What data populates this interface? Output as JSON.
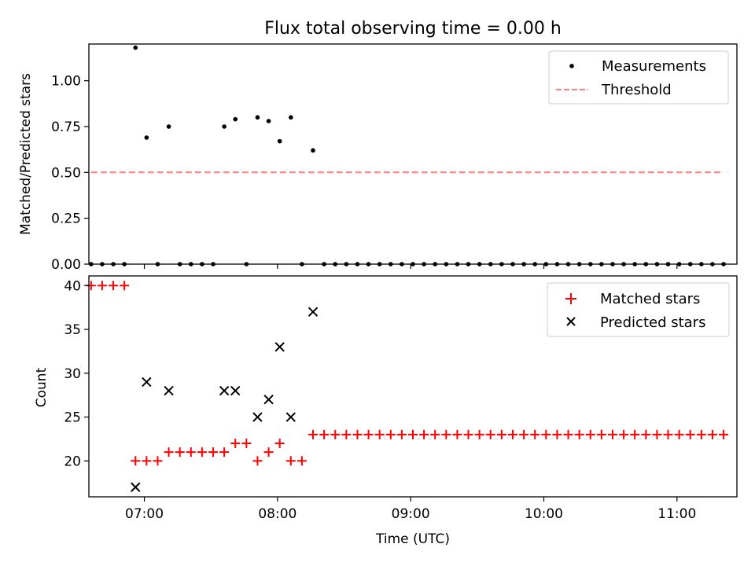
{
  "chart_data": {
    "title": "Flux total observing time = 0.00 h",
    "xlabel": "Time (UTC)",
    "x_tick_labels": [
      "07:00",
      "08:00",
      "09:00",
      "10:00",
      "11:00"
    ],
    "x_range": [
      "06:35",
      "11:27"
    ],
    "top": {
      "type": "scatter",
      "ylabel": "Matched/Predicted stars",
      "ylim": [
        0,
        1.2
      ],
      "y_tick_labels": [
        "0.00",
        "0.25",
        "0.50",
        "0.75",
        "1.00"
      ],
      "legend_position": "top-right",
      "series": [
        {
          "name": "Measurements",
          "marker": "dot",
          "color": "#000000",
          "x": [
            "06:36",
            "06:41",
            "06:46",
            "06:51",
            "06:56",
            "07:01",
            "07:06",
            "07:11",
            "07:16",
            "07:21",
            "07:26",
            "07:31",
            "07:36",
            "07:41",
            "07:46",
            "07:51",
            "07:56",
            "08:01",
            "08:06",
            "08:11",
            "08:16",
            "08:21",
            "08:26",
            "08:31",
            "08:36",
            "08:41",
            "08:46",
            "08:51",
            "08:56",
            "09:01",
            "09:06",
            "09:11",
            "09:16",
            "09:21",
            "09:26",
            "09:31",
            "09:36",
            "09:41",
            "09:46",
            "09:51",
            "09:56",
            "10:01",
            "10:06",
            "10:11",
            "10:16",
            "10:21",
            "10:26",
            "10:31",
            "10:36",
            "10:41",
            "10:46",
            "10:51",
            "10:56",
            "11:01",
            "11:06",
            "11:11",
            "11:16",
            "11:21"
          ],
          "y": [
            0,
            0,
            0,
            0,
            1.18,
            0.69,
            0,
            0.75,
            0,
            0,
            0,
            0,
            0.75,
            0.79,
            0,
            0.8,
            0.78,
            0.67,
            0.8,
            0,
            0.62,
            0,
            0,
            0,
            0,
            0,
            0,
            0,
            0,
            0,
            0,
            0,
            0,
            0,
            0,
            0,
            0,
            0,
            0,
            0,
            0,
            0,
            0,
            0,
            0,
            0,
            0,
            0,
            0,
            0,
            0,
            0,
            0,
            0,
            0,
            0,
            0,
            0
          ]
        },
        {
          "name": "Threshold",
          "line_style": "dashed",
          "color": "#ff7f7f",
          "x": [
            "06:36",
            "11:21"
          ],
          "y": [
            0.5,
            0.5
          ]
        }
      ]
    },
    "bottom": {
      "type": "scatter",
      "ylabel": "Count",
      "ylim": [
        15.9,
        41.1
      ],
      "y_tick_labels": [
        "20",
        "25",
        "30",
        "35",
        "40"
      ],
      "legend_position": "top-right",
      "series": [
        {
          "name": "Matched stars",
          "marker": "plus",
          "color": "#ff0000",
          "x": [
            "06:36",
            "06:41",
            "06:46",
            "06:51",
            "06:56",
            "07:01",
            "07:06",
            "07:11",
            "07:16",
            "07:21",
            "07:26",
            "07:31",
            "07:36",
            "07:41",
            "07:46",
            "07:51",
            "07:56",
            "08:01",
            "08:06",
            "08:11",
            "08:16",
            "08:21",
            "08:26",
            "08:31",
            "08:36",
            "08:41",
            "08:46",
            "08:51",
            "08:56",
            "09:01",
            "09:06",
            "09:11",
            "09:16",
            "09:21",
            "09:26",
            "09:31",
            "09:36",
            "09:41",
            "09:46",
            "09:51",
            "09:56",
            "10:01",
            "10:06",
            "10:11",
            "10:16",
            "10:21",
            "10:26",
            "10:31",
            "10:36",
            "10:41",
            "10:46",
            "10:51",
            "10:56",
            "11:01",
            "11:06",
            "11:11",
            "11:16",
            "11:21"
          ],
          "y": [
            40,
            40,
            40,
            40,
            20,
            20,
            20,
            21,
            21,
            21,
            21,
            21,
            21,
            22,
            22,
            20,
            21,
            22,
            20,
            20,
            23,
            23,
            23,
            23,
            23,
            23,
            23,
            23,
            23,
            23,
            23,
            23,
            23,
            23,
            23,
            23,
            23,
            23,
            23,
            23,
            23,
            23,
            23,
            23,
            23,
            23,
            23,
            23,
            23,
            23,
            23,
            23,
            23,
            23,
            23,
            23,
            23,
            23
          ]
        },
        {
          "name": "Predicted stars",
          "marker": "x",
          "color": "#000000",
          "x": [
            "06:56",
            "07:01",
            "07:11",
            "07:36",
            "07:41",
            "07:51",
            "07:56",
            "08:01",
            "08:06",
            "08:16"
          ],
          "y": [
            17,
            29,
            28,
            28,
            28,
            25,
            27,
            33,
            25,
            37
          ]
        }
      ]
    }
  }
}
